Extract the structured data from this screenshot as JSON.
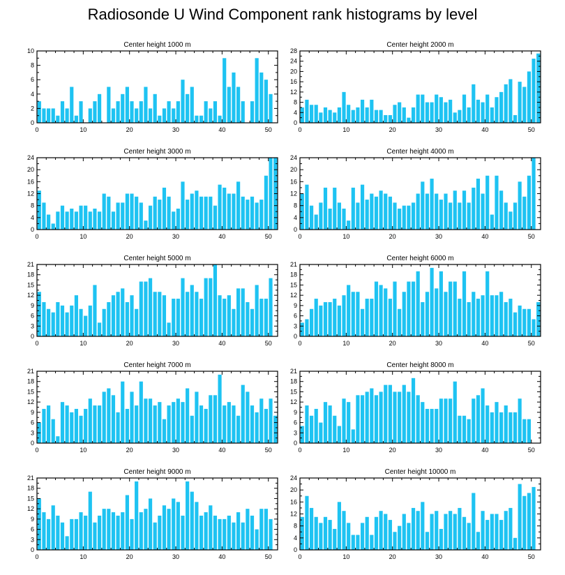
{
  "figure": {
    "title": "Radiosonde U Wind Component rank histograms by level"
  },
  "style": {
    "bar_color": "#1EC3F2",
    "axis_color": "#000000"
  },
  "chart_data": [
    {
      "type": "bar",
      "title": "Center height 1000 m",
      "xlabel": "",
      "ylabel": "",
      "xlim": [
        0,
        52
      ],
      "ylim": [
        0,
        10
      ],
      "yticks": [
        0,
        2,
        4,
        6,
        8,
        10
      ],
      "xticks": [
        0,
        10,
        20,
        30,
        40,
        50
      ],
      "values": [
        3,
        2,
        2,
        2,
        1,
        3,
        2,
        5,
        1,
        3,
        0,
        2,
        3,
        4,
        0,
        5,
        2,
        3,
        4,
        5,
        3,
        2,
        3,
        5,
        2,
        4,
        1,
        2,
        3,
        2,
        3,
        6,
        4,
        5,
        1,
        1,
        3,
        2,
        3,
        1,
        9,
        5,
        7,
        5,
        3,
        0,
        3,
        9,
        7,
        6,
        4
      ]
    },
    {
      "type": "bar",
      "title": "Center height 2000 m",
      "xlabel": "",
      "ylabel": "",
      "xlim": [
        0,
        52
      ],
      "ylim": [
        0,
        28
      ],
      "yticks": [
        0,
        4,
        8,
        12,
        16,
        20,
        24,
        28
      ],
      "xticks": [
        0,
        10,
        20,
        30,
        40,
        50
      ],
      "values": [
        6,
        9,
        7,
        7,
        4,
        6,
        5,
        4,
        6,
        12,
        7,
        5,
        6,
        9,
        6,
        9,
        5,
        5,
        3,
        3,
        7,
        8,
        6,
        2,
        6,
        11,
        11,
        8,
        8,
        11,
        10,
        8,
        9,
        4,
        5,
        11,
        6,
        15,
        9,
        8,
        11,
        6,
        10,
        12,
        15,
        17,
        3,
        16,
        14,
        20,
        25,
        27
      ]
    },
    {
      "type": "bar",
      "title": "Center height 3000 m",
      "xlabel": "",
      "ylabel": "",
      "xlim": [
        0,
        52
      ],
      "ylim": [
        0,
        24
      ],
      "yticks": [
        0,
        4,
        8,
        12,
        16,
        20,
        24
      ],
      "xticks": [
        0,
        10,
        20,
        30,
        40,
        50
      ],
      "values": [
        13,
        9,
        5,
        2,
        6,
        8,
        6,
        7,
        6,
        8,
        8,
        6,
        7,
        6,
        12,
        11,
        6,
        9,
        9,
        12,
        12,
        11,
        9,
        3,
        8,
        11,
        10,
        14,
        11,
        6,
        7,
        16,
        10,
        12,
        13,
        11,
        11,
        11,
        8,
        15,
        14,
        12,
        12,
        16,
        11,
        10,
        11,
        9,
        10,
        18,
        24,
        24
      ]
    },
    {
      "type": "bar",
      "title": "Center height 4000 m",
      "xlabel": "",
      "ylabel": "",
      "xlim": [
        0,
        52
      ],
      "ylim": [
        0,
        24
      ],
      "yticks": [
        0,
        4,
        8,
        12,
        16,
        20,
        24
      ],
      "xticks": [
        0,
        10,
        20,
        30,
        40,
        50
      ],
      "values": [
        12,
        15,
        8,
        5,
        9,
        14,
        7,
        14,
        9,
        7,
        3,
        14,
        9,
        15,
        10,
        12,
        11,
        13,
        12,
        11,
        9,
        7,
        8,
        8,
        9,
        12,
        16,
        12,
        17,
        12,
        10,
        12,
        9,
        13,
        9,
        13,
        9,
        14,
        17,
        12,
        18,
        5,
        18,
        13,
        9,
        6,
        9,
        16,
        11,
        18,
        24
      ]
    },
    {
      "type": "bar",
      "title": "Center height 5000 m",
      "xlabel": "",
      "ylabel": "",
      "xlim": [
        0,
        52
      ],
      "ylim": [
        0,
        21
      ],
      "yticks": [
        0,
        3,
        6,
        9,
        12,
        15,
        18,
        21
      ],
      "xticks": [
        0,
        10,
        20,
        30,
        40,
        50
      ],
      "values": [
        13,
        10,
        8,
        7,
        10,
        9,
        7,
        9,
        12,
        8,
        6,
        9,
        15,
        4,
        8,
        10,
        12,
        13,
        14,
        10,
        12,
        8,
        16,
        16,
        17,
        13,
        13,
        12,
        4,
        11,
        11,
        17,
        13,
        15,
        13,
        11,
        17,
        17,
        21,
        12,
        11,
        12,
        8,
        14,
        14,
        10,
        8,
        15,
        11,
        11,
        17
      ]
    },
    {
      "type": "bar",
      "title": "Center height 6000 m",
      "xlabel": "",
      "ylabel": "",
      "xlim": [
        0,
        52
      ],
      "ylim": [
        0,
        21
      ],
      "yticks": [
        0,
        3,
        6,
        9,
        12,
        15,
        18,
        21
      ],
      "xticks": [
        0,
        10,
        20,
        30,
        40,
        50
      ],
      "values": [
        4,
        5,
        8,
        11,
        9,
        10,
        10,
        11,
        9,
        12,
        15,
        13,
        13,
        8,
        11,
        11,
        16,
        15,
        14,
        11,
        16,
        8,
        13,
        16,
        16,
        19,
        10,
        13,
        20,
        14,
        19,
        13,
        16,
        16,
        11,
        19,
        10,
        13,
        11,
        12,
        19,
        12,
        12,
        13,
        10,
        11,
        7,
        9,
        8,
        8,
        5,
        10
      ]
    },
    {
      "type": "bar",
      "title": "Center height 7000 m",
      "xlabel": "",
      "ylabel": "",
      "xlim": [
        0,
        52
      ],
      "ylim": [
        0,
        21
      ],
      "yticks": [
        0,
        3,
        6,
        9,
        12,
        15,
        18,
        21
      ],
      "xticks": [
        0,
        10,
        20,
        30,
        40,
        50
      ],
      "values": [
        6,
        10,
        11,
        7,
        2,
        12,
        11,
        9,
        10,
        8,
        10,
        13,
        11,
        11,
        15,
        16,
        14,
        9,
        18,
        10,
        15,
        11,
        18,
        13,
        13,
        11,
        12,
        7,
        11,
        12,
        13,
        12,
        16,
        8,
        15,
        11,
        10,
        14,
        14,
        20,
        11,
        12,
        11,
        8,
        17,
        15,
        11,
        9,
        13,
        10,
        13,
        8
      ]
    },
    {
      "type": "bar",
      "title": "Center height 8000 m",
      "xlabel": "",
      "ylabel": "",
      "xlim": [
        0,
        52
      ],
      "ylim": [
        0,
        21
      ],
      "yticks": [
        0,
        3,
        6,
        9,
        12,
        15,
        18,
        21
      ],
      "xticks": [
        0,
        10,
        20,
        30,
        40,
        50
      ],
      "values": [
        5,
        11,
        8,
        10,
        6,
        12,
        11,
        8,
        5,
        13,
        12,
        4,
        14,
        14,
        15,
        16,
        14,
        15,
        17,
        17,
        15,
        15,
        17,
        15,
        19,
        14,
        12,
        10,
        10,
        10,
        13,
        13,
        13,
        18,
        8,
        8,
        7,
        13,
        14,
        16,
        11,
        9,
        12,
        9,
        11,
        9,
        9,
        13,
        7,
        7
      ]
    },
    {
      "type": "bar",
      "title": "Center height 9000 m",
      "xlabel": "",
      "ylabel": "",
      "xlim": [
        0,
        52
      ],
      "ylim": [
        0,
        21
      ],
      "yticks": [
        0,
        3,
        6,
        9,
        12,
        15,
        18,
        21
      ],
      "xticks": [
        0,
        10,
        20,
        30,
        40,
        50
      ],
      "values": [
        15,
        11,
        9,
        13,
        10,
        8,
        4,
        9,
        9,
        11,
        10,
        17,
        8,
        10,
        12,
        12,
        11,
        10,
        11,
        16,
        9,
        20,
        11,
        12,
        15,
        8,
        10,
        13,
        12,
        15,
        14,
        10,
        20,
        17,
        14,
        10,
        11,
        13,
        10,
        9,
        9,
        10,
        8,
        11,
        8,
        12,
        10,
        6,
        12,
        12,
        9
      ]
    },
    {
      "type": "bar",
      "title": "Center height 10000 m",
      "xlabel": "",
      "ylabel": "",
      "xlim": [
        0,
        52
      ],
      "ylim": [
        0,
        24
      ],
      "yticks": [
        0,
        4,
        8,
        12,
        16,
        20,
        24
      ],
      "xticks": [
        0,
        10,
        20,
        30,
        40,
        50
      ],
      "values": [
        11,
        18,
        14,
        11,
        9,
        11,
        10,
        7,
        16,
        13,
        9,
        5,
        5,
        9,
        11,
        5,
        11,
        13,
        12,
        10,
        6,
        8,
        12,
        9,
        14,
        13,
        16,
        6,
        12,
        13,
        7,
        12,
        13,
        12,
        14,
        11,
        9,
        19,
        6,
        13,
        10,
        12,
        12,
        10,
        13,
        14,
        4,
        22,
        18,
        19,
        21
      ]
    }
  ]
}
